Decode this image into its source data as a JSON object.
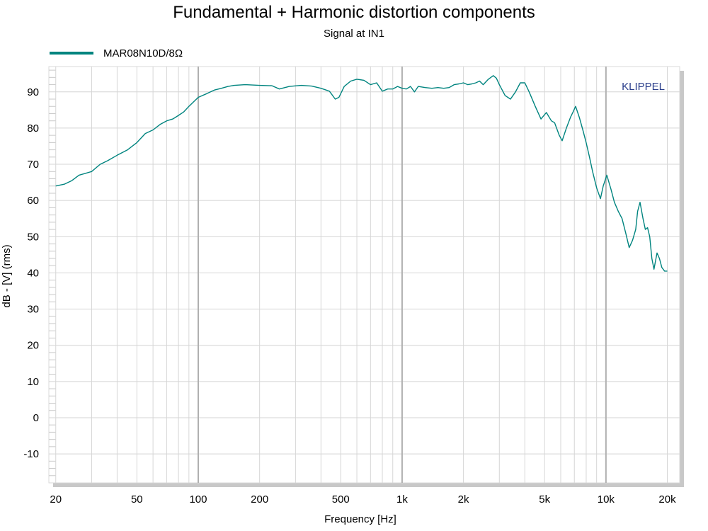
{
  "chart_data": {
    "type": "line",
    "title": "Fundamental + Harmonic distortion components",
    "subtitle": "Signal at IN1",
    "xlabel": "Frequency [Hz]",
    "ylabel": "dB - [V]  (rms)",
    "x_scale": "log",
    "xlim": [
      18.5,
      23000
    ],
    "ylim": [
      -18,
      97
    ],
    "x_ticks": [
      20,
      50,
      100,
      200,
      500,
      1000,
      2000,
      5000,
      10000,
      20000
    ],
    "x_tick_labels": [
      "20",
      "50",
      "100",
      "200",
      "500",
      "1k",
      "2k",
      "5k",
      "10k",
      "20k"
    ],
    "y_ticks": [
      90,
      80,
      70,
      60,
      50,
      40,
      30,
      20,
      10,
      0,
      -10
    ],
    "y_tick_labels": [
      "90",
      "80",
      "70",
      "60",
      "50",
      "40",
      "30",
      "20",
      "10",
      "0",
      "-10"
    ],
    "grid": true,
    "legend_position": "top-left",
    "watermark": "KLIPPEL",
    "colors": {
      "series": "#00847f",
      "watermark": "#2b3f8c",
      "frame_shadow": "#c8c8c8"
    },
    "series": [
      {
        "name": "MAR08N10D/8Ω",
        "color": "#00847f",
        "x": [
          20,
          22,
          24,
          26,
          28,
          30,
          33,
          36,
          40,
          45,
          50,
          55,
          60,
          65,
          70,
          75,
          80,
          85,
          90,
          100,
          110,
          120,
          130,
          140,
          150,
          170,
          200,
          230,
          250,
          280,
          320,
          360,
          400,
          440,
          470,
          490,
          520,
          560,
          600,
          650,
          700,
          750,
          800,
          850,
          900,
          950,
          1000,
          1050,
          1100,
          1150,
          1200,
          1300,
          1400,
          1500,
          1600,
          1700,
          1800,
          1900,
          2000,
          2100,
          2200,
          2300,
          2400,
          2500,
          2650,
          2800,
          2900,
          3000,
          3200,
          3400,
          3600,
          3800,
          4000,
          4200,
          4500,
          4800,
          5100,
          5400,
          5600,
          5900,
          6100,
          6400,
          6700,
          6900,
          7100,
          7400,
          7700,
          8000,
          8300,
          8600,
          9000,
          9400,
          9700,
          10100,
          10600,
          11000,
          11500,
          12000,
          12500,
          13000,
          13500,
          14000,
          14300,
          14700,
          15200,
          15600,
          16000,
          16400,
          16800,
          17200,
          17800,
          18300,
          18800,
          19400,
          20000
        ],
        "y": [
          64,
          64.5,
          65.5,
          67,
          67.5,
          68,
          70,
          71,
          72.5,
          74,
          76,
          78.5,
          79.5,
          81,
          82,
          82.5,
          83.5,
          84.5,
          86,
          88.5,
          89.5,
          90.5,
          91,
          91.5,
          91.8,
          92,
          91.8,
          91.7,
          90.8,
          91.5,
          91.8,
          91.6,
          91,
          90.2,
          88,
          88.5,
          91.5,
          93,
          93.5,
          93.2,
          92,
          92.5,
          90.2,
          90.8,
          90.8,
          91.5,
          91,
          90.8,
          91.5,
          90,
          91.5,
          91.2,
          91,
          91.2,
          91,
          91.2,
          92,
          92.2,
          92.5,
          92,
          92.2,
          92.5,
          93,
          92,
          93.5,
          94.5,
          93.8,
          92,
          89,
          88,
          90,
          92.5,
          92.5,
          90,
          86,
          82.5,
          84.3,
          82,
          81.5,
          78,
          76.5,
          80,
          83,
          84.5,
          86,
          83,
          79.5,
          76,
          72,
          68,
          63.5,
          60.5,
          64,
          67,
          63,
          59.5,
          57,
          55,
          51,
          47,
          49,
          52,
          57,
          59.5,
          55,
          52,
          52.5,
          50,
          44,
          41,
          45.5,
          44,
          41.5,
          40.5,
          40.5
        ]
      }
    ]
  }
}
